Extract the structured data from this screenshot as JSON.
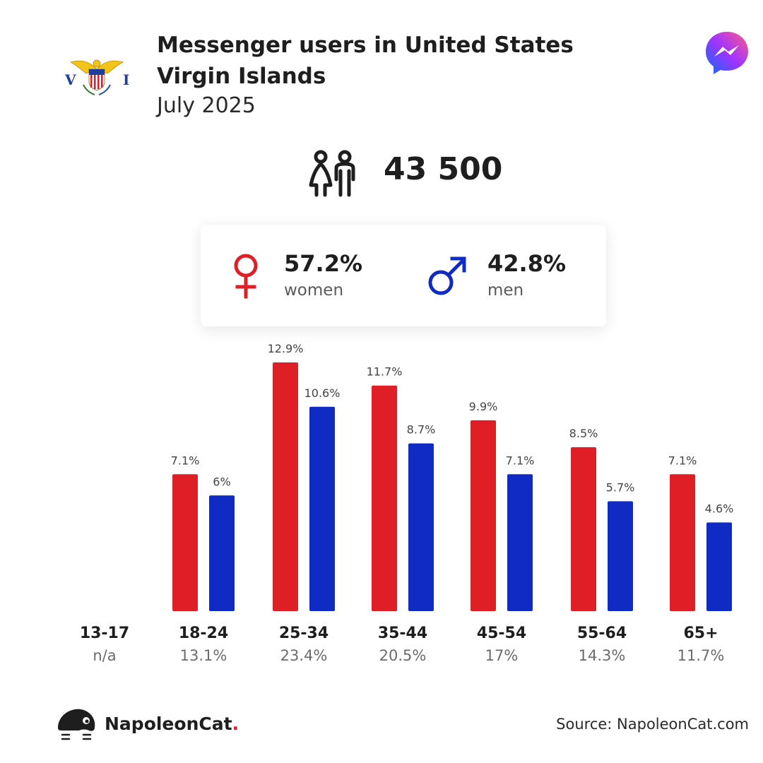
{
  "header": {
    "title": "Messenger users in United States Virgin Islands",
    "subtitle": "July 2025",
    "flag_letter_left": "V",
    "flag_letter_right": "I"
  },
  "summary": {
    "total_users": "43 500"
  },
  "gender": {
    "women_pct": "57.2%",
    "women_label": "women",
    "men_pct": "42.8%",
    "men_label": "men"
  },
  "colors": {
    "women": "#e01e26",
    "men": "#0f2bc4"
  },
  "chart_data": {
    "type": "bar",
    "categories": [
      "13-17",
      "18-24",
      "25-34",
      "35-44",
      "45-54",
      "55-64",
      "65+"
    ],
    "category_totals": [
      "n/a",
      "13.1%",
      "23.4%",
      "20.5%",
      "17%",
      "14.3%",
      "11.7%"
    ],
    "series": [
      {
        "name": "women",
        "values": [
          null,
          7.1,
          12.9,
          11.7,
          9.9,
          8.5,
          7.1
        ],
        "labels": [
          "",
          "7.1%",
          "12.9%",
          "11.7%",
          "9.9%",
          "8.5%",
          "7.1%"
        ]
      },
      {
        "name": "men",
        "values": [
          null,
          6.0,
          10.6,
          8.7,
          7.1,
          5.7,
          4.6
        ],
        "labels": [
          "",
          "6%",
          "10.6%",
          "8.7%",
          "7.1%",
          "5.7%",
          "4.6%"
        ]
      }
    ],
    "ylim": [
      0,
      12.9
    ],
    "unit": "%",
    "grid": false
  },
  "footer": {
    "brand_name": "NapoleonCat",
    "brand_dot": ".",
    "source": "Source: NapoleonCat.com"
  }
}
